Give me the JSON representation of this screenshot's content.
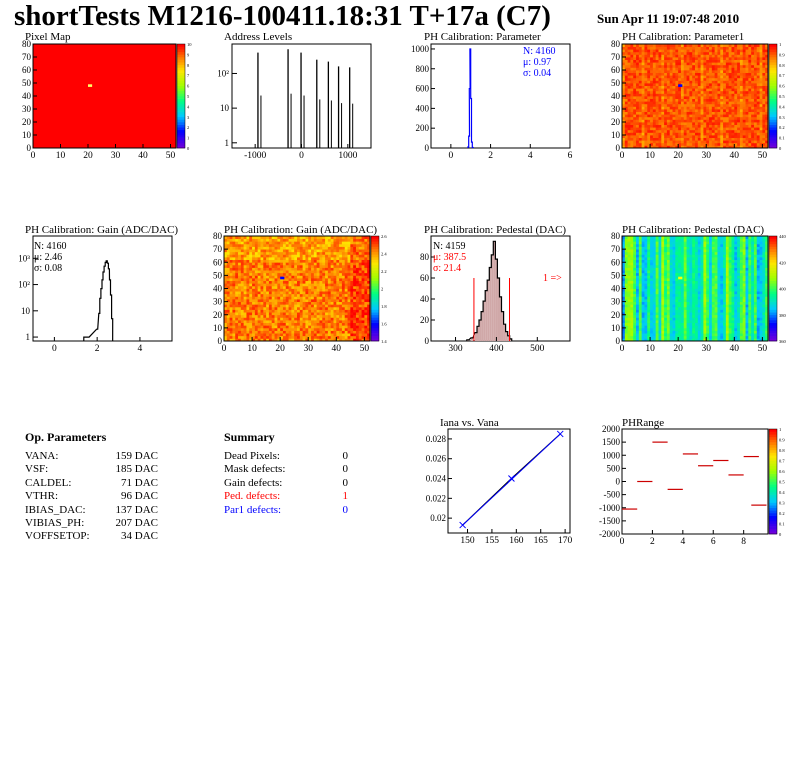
{
  "header": {
    "title": "shortTests M1216-100411.18:31 T+17a (C7)",
    "date": "Sun Apr 11 19:07:48 2010"
  },
  "colors": {
    "red_fill": "#ff0000",
    "frame": "#000000",
    "blue": "#0000ff",
    "red_text": "#ff0000",
    "pedestal_fill": "#d0a8a8"
  },
  "chart_data": [
    {
      "id": "pixel-map",
      "type": "heatmap",
      "title": "Pixel Map",
      "xlim": [
        0,
        52
      ],
      "ylim": [
        0,
        80
      ],
      "xticks": [
        "0",
        "10",
        "20",
        "30",
        "40",
        "50"
      ],
      "yticks": [
        "0",
        "10",
        "20",
        "30",
        "40",
        "50",
        "60",
        "70",
        "80"
      ],
      "uniform_value": 10,
      "highlight": [
        {
          "x": 20,
          "y": 48,
          "color": "#ffff66"
        }
      ],
      "zlim": [
        0,
        10
      ],
      "zticks": [
        "0",
        "1",
        "2",
        "3",
        "4",
        "5",
        "6",
        "7",
        "8",
        "9",
        "10"
      ]
    },
    {
      "id": "address-levels",
      "type": "bar",
      "title": "Address Levels",
      "xlim": [
        -1500,
        1500
      ],
      "yscale": "log",
      "xticks": [
        "-1000",
        "0",
        "1000"
      ],
      "yticks": [
        "1",
        "10",
        "10²"
      ],
      "peaks": [
        {
          "x": -940,
          "v": 400
        },
        {
          "x": -290,
          "v": 500
        },
        {
          "x": -10,
          "v": 400
        },
        {
          "x": 330,
          "v": 250
        },
        {
          "x": 580,
          "v": 220
        },
        {
          "x": 800,
          "v": 160
        },
        {
          "x": 1040,
          "v": 150
        }
      ]
    },
    {
      "id": "ph-param",
      "type": "bar",
      "title": "PH Calibration: Parameter",
      "xlim": [
        -1,
        6
      ],
      "ylim": [
        0,
        1050
      ],
      "xticks": [
        "0",
        "2",
        "4",
        "6"
      ],
      "yticks": [
        "0",
        "200",
        "400",
        "600",
        "800",
        "1000"
      ],
      "stats": [
        "N: 4160",
        "μ: 0.97",
        "σ: 0.04"
      ],
      "points": [
        {
          "x": 0.88,
          "v": 10
        },
        {
          "x": 0.92,
          "v": 120
        },
        {
          "x": 0.95,
          "v": 600
        },
        {
          "x": 0.98,
          "v": 1000
        },
        {
          "x": 1.02,
          "v": 500
        },
        {
          "x": 1.06,
          "v": 60
        },
        {
          "x": 1.1,
          "v": 5
        }
      ]
    },
    {
      "id": "ph-param1",
      "type": "heatmap",
      "title": "PH Calibration: Parameter1",
      "xlim": [
        0,
        52
      ],
      "ylim": [
        0,
        80
      ],
      "xticks": [
        "0",
        "10",
        "20",
        "30",
        "40",
        "50"
      ],
      "yticks": [
        "0",
        "10",
        "20",
        "30",
        "40",
        "50",
        "60",
        "70",
        "80"
      ],
      "zlim": [
        0,
        1
      ],
      "zticks": [
        "0",
        "0.1",
        "0.2",
        "0.3",
        "0.4",
        "0.5",
        "0.6",
        "0.7",
        "0.8",
        "0.9",
        "1"
      ],
      "mean_value": 0.93,
      "highlight": [
        {
          "x": 20,
          "y": 48,
          "color": "#0000ff"
        }
      ]
    },
    {
      "id": "gain-hist",
      "type": "bar",
      "title": "PH Calibration: Gain (ADC/DAC)",
      "xlim": [
        -1,
        5.5
      ],
      "yscale": "log",
      "xticks": [
        "0",
        "2",
        "4"
      ],
      "yticks": [
        "1",
        "10",
        "10²",
        "10³"
      ],
      "stats": [
        "N: 4160",
        "μ: 2.46",
        "σ: 0.08"
      ],
      "points": [
        {
          "x": 1.4,
          "v": 1
        },
        {
          "x": 1.6,
          "v": 1
        },
        {
          "x": 2.0,
          "v": 2
        },
        {
          "x": 2.1,
          "v": 8
        },
        {
          "x": 2.15,
          "v": 30
        },
        {
          "x": 2.2,
          "v": 70
        },
        {
          "x": 2.25,
          "v": 150
        },
        {
          "x": 2.3,
          "v": 300
        },
        {
          "x": 2.35,
          "v": 500
        },
        {
          "x": 2.4,
          "v": 700
        },
        {
          "x": 2.45,
          "v": 800
        },
        {
          "x": 2.5,
          "v": 650
        },
        {
          "x": 2.55,
          "v": 400
        },
        {
          "x": 2.6,
          "v": 150
        },
        {
          "x": 2.65,
          "v": 40
        },
        {
          "x": 2.7,
          "v": 5
        }
      ]
    },
    {
      "id": "gain-map",
      "type": "heatmap",
      "title": "PH Calibration: Gain (ADC/DAC)",
      "xlim": [
        0,
        52
      ],
      "ylim": [
        0,
        80
      ],
      "xticks": [
        "0",
        "10",
        "20",
        "30",
        "40",
        "50"
      ],
      "yticks": [
        "0",
        "10",
        "20",
        "30",
        "40",
        "50",
        "60",
        "70",
        "80"
      ],
      "zlim": [
        1.4,
        2.6
      ],
      "zticks": [
        "1.4",
        "1.6",
        "1.8",
        "2",
        "2.2",
        "2.4",
        "2.6"
      ],
      "mean_value": 2.46,
      "highlight": [
        {
          "x": 20,
          "y": 48,
          "color": "#0000ff"
        }
      ]
    },
    {
      "id": "pedestal-hist",
      "type": "bar",
      "title": "PH Calibration: Pedestal (DAC)",
      "xlim": [
        240,
        580
      ],
      "ylim": [
        0,
        100
      ],
      "xticks": [
        "300",
        "400",
        "500"
      ],
      "yticks": [
        "0",
        "20",
        "40",
        "60",
        "80"
      ],
      "stats": [
        "N: 4159",
        "μ: 387.5",
        "σ: 21.4"
      ],
      "cut_lines": [
        345,
        432
      ],
      "annotation": "1 =>",
      "points": [
        {
          "x": 330,
          "v": 1
        },
        {
          "x": 340,
          "v": 3
        },
        {
          "x": 350,
          "v": 8
        },
        {
          "x": 355,
          "v": 14
        },
        {
          "x": 360,
          "v": 20
        },
        {
          "x": 365,
          "v": 28
        },
        {
          "x": 370,
          "v": 38
        },
        {
          "x": 375,
          "v": 48
        },
        {
          "x": 380,
          "v": 58
        },
        {
          "x": 385,
          "v": 70
        },
        {
          "x": 390,
          "v": 82
        },
        {
          "x": 395,
          "v": 95
        },
        {
          "x": 400,
          "v": 78
        },
        {
          "x": 405,
          "v": 60
        },
        {
          "x": 410,
          "v": 42
        },
        {
          "x": 415,
          "v": 28
        },
        {
          "x": 420,
          "v": 16
        },
        {
          "x": 425,
          "v": 9
        },
        {
          "x": 430,
          "v": 5
        },
        {
          "x": 435,
          "v": 2
        }
      ]
    },
    {
      "id": "pedestal-map",
      "type": "heatmap",
      "title": "PH Calibration: Pedestal (DAC)",
      "xlim": [
        0,
        52
      ],
      "ylim": [
        0,
        80
      ],
      "xticks": [
        "0",
        "10",
        "20",
        "30",
        "40",
        "50"
      ],
      "yticks": [
        "0",
        "10",
        "20",
        "30",
        "40",
        "50",
        "60",
        "70",
        "80"
      ],
      "zlim": [
        350,
        440
      ],
      "zticks": [
        "360",
        "380",
        "400",
        "420",
        "440"
      ],
      "highlight": [
        {
          "x": 20,
          "y": 48,
          "color": "#ffff00"
        }
      ]
    },
    {
      "id": "iana-vana",
      "type": "line",
      "title": "Iana vs. Vana",
      "xlim": [
        146,
        171
      ],
      "ylim": [
        0.0185,
        0.029
      ],
      "xticks": [
        "150",
        "155",
        "160",
        "165",
        "170"
      ],
      "yticks": [
        "0.02",
        "0.022",
        "0.024",
        "0.026",
        "0.028"
      ],
      "x": [
        149,
        159,
        169
      ],
      "y": [
        0.0193,
        0.024,
        0.0285
      ]
    },
    {
      "id": "phrange",
      "type": "scatter",
      "title": "PHRange",
      "xlim": [
        0,
        9.6
      ],
      "ylim": [
        -2000,
        2000
      ],
      "xticks": [
        "0",
        "2",
        "4",
        "6",
        "8"
      ],
      "yticks": [
        "-2000",
        "-1500",
        "-1000",
        "-500",
        "0",
        "500",
        "1000",
        "1500",
        "2000"
      ],
      "zticks": [
        "0",
        "0.1",
        "0.2",
        "0.3",
        "0.4",
        "0.5",
        "0.6",
        "0.7",
        "0.8",
        "0.9",
        "1"
      ],
      "segments": [
        {
          "x": 0.5,
          "y": -1050
        },
        {
          "x": 1.5,
          "y": 0
        },
        {
          "x": 2.5,
          "y": 1500
        },
        {
          "x": 3.5,
          "y": -300
        },
        {
          "x": 4.5,
          "y": 1050
        },
        {
          "x": 5.5,
          "y": 600
        },
        {
          "x": 6.5,
          "y": 800
        },
        {
          "x": 7.5,
          "y": 250
        },
        {
          "x": 8.5,
          "y": 950
        },
        {
          "x": 9.0,
          "y": -900
        }
      ]
    }
  ],
  "op_params": {
    "heading": "Op. Parameters",
    "rows": [
      {
        "key": "VANA:",
        "value": "159 DAC"
      },
      {
        "key": "VSF:",
        "value": "185 DAC"
      },
      {
        "key": "CALDEL:",
        "value": "71 DAC"
      },
      {
        "key": "VTHR:",
        "value": "96 DAC"
      },
      {
        "key": "IBIAS_DAC:",
        "value": "137 DAC"
      },
      {
        "key": "VIBIAS_PH:",
        "value": "207 DAC"
      },
      {
        "key": "VOFFSETOP:",
        "value": "34 DAC"
      }
    ]
  },
  "summary": {
    "heading": "Summary",
    "rows": [
      {
        "key": "Dead Pixels:",
        "value": "0",
        "color": "#000000"
      },
      {
        "key": "Mask defects:",
        "value": "0",
        "color": "#000000"
      },
      {
        "key": "Gain defects:",
        "value": "0",
        "color": "#000000"
      },
      {
        "key": "Ped. defects:",
        "value": "1",
        "color": "#ff0000"
      },
      {
        "key": "Par1 defects:",
        "value": "0",
        "color": "#0000ff"
      }
    ]
  }
}
